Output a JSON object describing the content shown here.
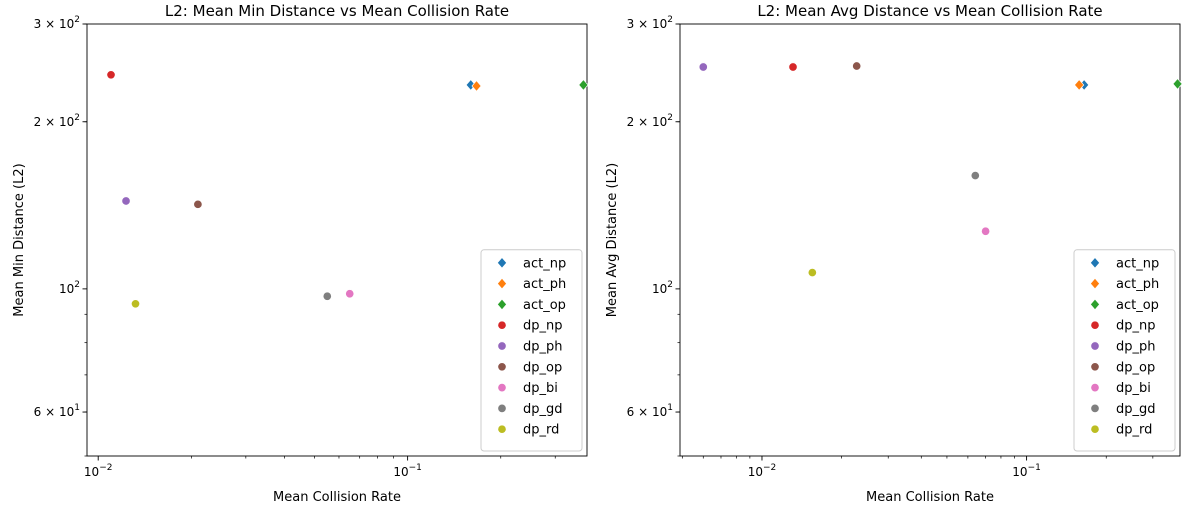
{
  "chart_data": [
    {
      "type": "scatter",
      "title": "L2: Mean Min Distance vs Mean Collision Rate",
      "xlabel": "Mean Collision Rate",
      "ylabel": "Mean Min Distance (L2)",
      "xscale": "log",
      "yscale": "log",
      "xlim": [
        0.0092,
        0.38
      ],
      "ylim": [
        50,
        300
      ],
      "xticks": [
        {
          "value": 0.01,
          "base": "10",
          "exp": "−2"
        },
        {
          "value": 0.1,
          "base": "10",
          "exp": "−1"
        }
      ],
      "yticks": [
        {
          "value": 60,
          "mant": "6",
          "exp": "1"
        },
        {
          "value": 100,
          "mant": "",
          "exp": "2"
        },
        {
          "value": 200,
          "mant": "2",
          "exp": "2"
        },
        {
          "value": 300,
          "mant": "3",
          "exp": "2"
        }
      ],
      "grid": false,
      "legend_position": "lower-right",
      "series": [
        {
          "name": "act_np",
          "marker": "diamond",
          "color": "#1f77b4",
          "x": 0.16,
          "y": 233
        },
        {
          "name": "act_ph",
          "marker": "diamond",
          "color": "#ff7f0e",
          "x": 0.167,
          "y": 232
        },
        {
          "name": "act_op",
          "marker": "diamond",
          "color": "#2ca02c",
          "x": 0.37,
          "y": 233
        },
        {
          "name": "dp_np",
          "marker": "circle",
          "color": "#d62728",
          "x": 0.011,
          "y": 243
        },
        {
          "name": "dp_ph",
          "marker": "circle",
          "color": "#9467bd",
          "x": 0.0123,
          "y": 144
        },
        {
          "name": "dp_op",
          "marker": "circle",
          "color": "#8c564b",
          "x": 0.021,
          "y": 142
        },
        {
          "name": "dp_bi",
          "marker": "circle",
          "color": "#e377c2",
          "x": 0.065,
          "y": 98
        },
        {
          "name": "dp_gd",
          "marker": "circle",
          "color": "#7f7f7f",
          "x": 0.055,
          "y": 97
        },
        {
          "name": "dp_rd",
          "marker": "circle",
          "color": "#bcbd22",
          "x": 0.0132,
          "y": 94
        }
      ]
    },
    {
      "type": "scatter",
      "title": "L2: Mean Avg Distance vs Mean Collision Rate",
      "xlabel": "Mean Collision Rate",
      "ylabel": "Mean Avg Distance (L2)",
      "xscale": "log",
      "yscale": "log",
      "xlim": [
        0.0049,
        0.38
      ],
      "ylim": [
        50,
        300
      ],
      "xticks": [
        {
          "value": 0.01,
          "base": "10",
          "exp": "−2"
        },
        {
          "value": 0.1,
          "base": "10",
          "exp": "−1"
        }
      ],
      "yticks": [
        {
          "value": 60,
          "mant": "6",
          "exp": "1"
        },
        {
          "value": 100,
          "mant": "",
          "exp": "2"
        },
        {
          "value": 200,
          "mant": "2",
          "exp": "2"
        },
        {
          "value": 300,
          "mant": "3",
          "exp": "2"
        }
      ],
      "grid": false,
      "legend_position": "lower-right",
      "series": [
        {
          "name": "act_np",
          "marker": "diamond",
          "color": "#1f77b4",
          "x": 0.165,
          "y": 233
        },
        {
          "name": "act_ph",
          "marker": "diamond",
          "color": "#ff7f0e",
          "x": 0.158,
          "y": 233
        },
        {
          "name": "act_op",
          "marker": "diamond",
          "color": "#2ca02c",
          "x": 0.372,
          "y": 234
        },
        {
          "name": "dp_np",
          "marker": "circle",
          "color": "#d62728",
          "x": 0.0131,
          "y": 251
        },
        {
          "name": "dp_ph",
          "marker": "circle",
          "color": "#9467bd",
          "x": 0.006,
          "y": 251
        },
        {
          "name": "dp_op",
          "marker": "circle",
          "color": "#8c564b",
          "x": 0.0228,
          "y": 252
        },
        {
          "name": "dp_bi",
          "marker": "circle",
          "color": "#e377c2",
          "x": 0.07,
          "y": 127
        },
        {
          "name": "dp_gd",
          "marker": "circle",
          "color": "#7f7f7f",
          "x": 0.064,
          "y": 160
        },
        {
          "name": "dp_rd",
          "marker": "circle",
          "color": "#bcbd22",
          "x": 0.0155,
          "y": 107
        }
      ]
    }
  ]
}
